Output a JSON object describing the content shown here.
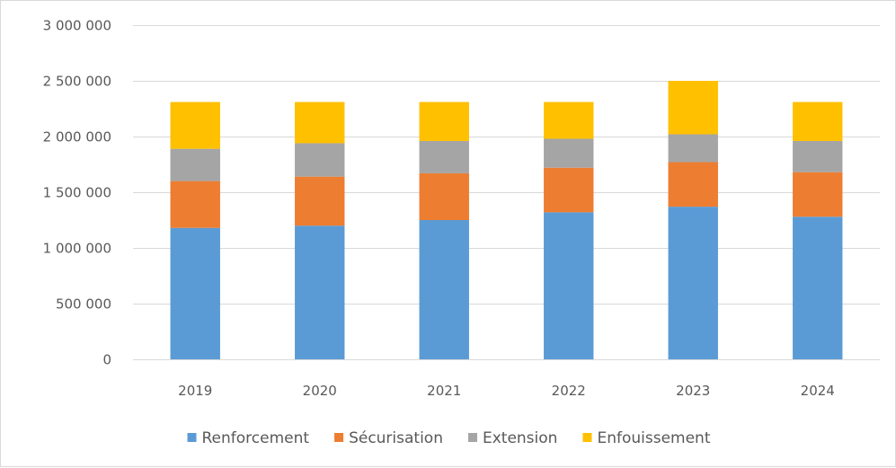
{
  "chart_data": {
    "type": "bar",
    "stacked": true,
    "categories": [
      "2019",
      "2020",
      "2021",
      "2022",
      "2023",
      "2024"
    ],
    "series": [
      {
        "name": "Renforcement",
        "color": "#5B9BD5",
        "values": [
          1180000,
          1200000,
          1250000,
          1320000,
          1370000,
          1280000
        ]
      },
      {
        "name": "Sécurisation",
        "color": "#ED7D31",
        "values": [
          420000,
          440000,
          420000,
          400000,
          400000,
          400000
        ]
      },
      {
        "name": "Extension",
        "color": "#A5A5A5",
        "values": [
          290000,
          300000,
          290000,
          260000,
          250000,
          280000
        ]
      },
      {
        "name": "Enfouissement",
        "color": "#FFC000",
        "values": [
          420000,
          370000,
          350000,
          330000,
          480000,
          350000
        ]
      }
    ],
    "y_ticks": [
      "0",
      "500 000",
      "1 000 000",
      "1 500 000",
      "2 000 000",
      "2 500 000",
      "3 000 000"
    ],
    "ylim": [
      0,
      3000000
    ],
    "grid": true,
    "legend_position": "bottom",
    "title": "",
    "xlabel": "",
    "ylabel": ""
  }
}
